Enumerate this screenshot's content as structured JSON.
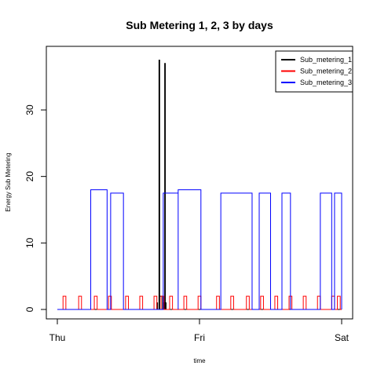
{
  "chart_data": {
    "type": "line",
    "title": "Sub Metering 1, 2, 3 by days",
    "xlabel": "time",
    "ylabel": "Energy Sub Metering",
    "x_ticks": [
      "Thu",
      "Fri",
      "Sat"
    ],
    "y_ticks": [
      0,
      10,
      20,
      30
    ],
    "xlim_days": [
      0,
      2
    ],
    "ylim": [
      0,
      38
    ],
    "grid": false,
    "legend_position": "top-right",
    "series": [
      {
        "name": "Sub_metering_1",
        "color": "#000000",
        "baseline": 0,
        "events": [
          {
            "start": 0.7,
            "end": 0.705,
            "level": 1
          },
          {
            "start": 0.715,
            "end": 0.72,
            "level": 37.5
          },
          {
            "start": 0.72,
            "end": 0.74,
            "level": 2
          },
          {
            "start": 0.745,
            "end": 0.75,
            "level": 1
          },
          {
            "start": 0.755,
            "end": 0.76,
            "level": 37
          },
          {
            "start": 0.76,
            "end": 0.765,
            "level": 1
          }
        ]
      },
      {
        "name": "Sub_metering_2",
        "color": "#ff0000",
        "baseline": 0,
        "events": [
          {
            "start": 0.04,
            "end": 0.06,
            "level": 2
          },
          {
            "start": 0.15,
            "end": 0.17,
            "level": 2
          },
          {
            "start": 0.26,
            "end": 0.28,
            "level": 2
          },
          {
            "start": 0.36,
            "end": 0.38,
            "level": 2
          },
          {
            "start": 0.48,
            "end": 0.5,
            "level": 2
          },
          {
            "start": 0.58,
            "end": 0.6,
            "level": 2
          },
          {
            "start": 0.68,
            "end": 0.7,
            "level": 2
          },
          {
            "start": 0.73,
            "end": 0.75,
            "level": 2
          },
          {
            "start": 0.79,
            "end": 0.81,
            "level": 2
          },
          {
            "start": 0.89,
            "end": 0.91,
            "level": 2
          },
          {
            "start": 0.99,
            "end": 1.01,
            "level": 2
          },
          {
            "start": 1.12,
            "end": 1.14,
            "level": 2
          },
          {
            "start": 1.22,
            "end": 1.24,
            "level": 2
          },
          {
            "start": 1.33,
            "end": 1.35,
            "level": 2
          },
          {
            "start": 1.43,
            "end": 1.45,
            "level": 2
          },
          {
            "start": 1.53,
            "end": 1.55,
            "level": 2
          },
          {
            "start": 1.63,
            "end": 1.65,
            "level": 2
          },
          {
            "start": 1.73,
            "end": 1.75,
            "level": 2
          },
          {
            "start": 1.83,
            "end": 1.85,
            "level": 2
          },
          {
            "start": 1.93,
            "end": 1.95,
            "level": 2
          },
          {
            "start": 1.97,
            "end": 1.99,
            "level": 2
          }
        ]
      },
      {
        "name": "Sub_metering_3",
        "color": "#0000ff",
        "baseline": 0,
        "events": [
          {
            "start": 0.235,
            "end": 0.35,
            "level": 18
          },
          {
            "start": 0.375,
            "end": 0.465,
            "level": 17.5
          },
          {
            "start": 0.745,
            "end": 0.85,
            "level": 17.5
          },
          {
            "start": 0.85,
            "end": 1.01,
            "level": 18
          },
          {
            "start": 1.15,
            "end": 1.37,
            "level": 17.5
          },
          {
            "start": 1.42,
            "end": 1.5,
            "level": 17.5
          },
          {
            "start": 1.58,
            "end": 1.64,
            "level": 17.5
          },
          {
            "start": 1.85,
            "end": 1.93,
            "level": 17.5
          },
          {
            "start": 1.95,
            "end": 2.0,
            "level": 17.5
          }
        ]
      }
    ]
  }
}
